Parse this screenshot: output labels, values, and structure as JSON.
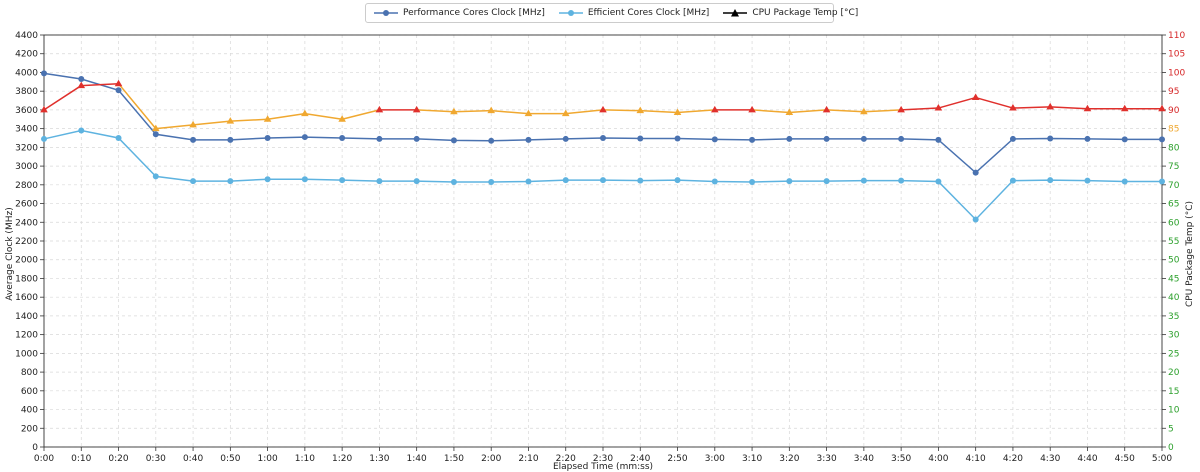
{
  "chart_data": {
    "type": "line",
    "xlabel": "Elapsed Time (mm:ss)",
    "ylabel_left": "Average Clock (MHz)",
    "ylabel_right": "CPU Package Temp (°C)",
    "x": [
      "0:00",
      "0:10",
      "0:20",
      "0:30",
      "0:40",
      "0:50",
      "1:00",
      "1:10",
      "1:20",
      "1:30",
      "1:40",
      "1:50",
      "2:00",
      "2:10",
      "2:20",
      "2:30",
      "2:40",
      "2:50",
      "3:00",
      "3:10",
      "3:20",
      "3:30",
      "3:40",
      "3:50",
      "4:00",
      "4:10",
      "4:20",
      "4:30",
      "4:40",
      "4:50",
      "5:00"
    ],
    "ylim_left": [
      0,
      4400
    ],
    "yticks_left": [
      0,
      200,
      400,
      600,
      800,
      1000,
      1200,
      1400,
      1600,
      1800,
      2000,
      2200,
      2400,
      2600,
      2800,
      3000,
      3200,
      3400,
      3600,
      3800,
      4000,
      4200,
      4400
    ],
    "ylim_right": [
      0,
      110
    ],
    "yticks_right": [
      0,
      5,
      10,
      15,
      20,
      25,
      30,
      35,
      40,
      45,
      50,
      55,
      60,
      65,
      70,
      75,
      80,
      85,
      90,
      95,
      100,
      105,
      110
    ],
    "grid": true,
    "legend_position": "top-center",
    "series": [
      {
        "name": "Performance Cores Clock [MHz]",
        "axis": "left",
        "marker": "circle",
        "values": [
          3990,
          3930,
          3810,
          3340,
          3280,
          3280,
          3300,
          3310,
          3300,
          3290,
          3290,
          3275,
          3270,
          3280,
          3290,
          3300,
          3295,
          3295,
          3285,
          3280,
          3290,
          3290,
          3290,
          3290,
          3280,
          2930,
          3290,
          3295,
          3290,
          3285,
          3285
        ]
      },
      {
        "name": "Efficient Cores Clock [MHz]",
        "axis": "left",
        "marker": "circle",
        "values": [
          3290,
          3380,
          3300,
          2890,
          2840,
          2840,
          2860,
          2860,
          2850,
          2840,
          2840,
          2830,
          2830,
          2835,
          2850,
          2850,
          2845,
          2850,
          2835,
          2830,
          2840,
          2840,
          2845,
          2845,
          2835,
          2430,
          2845,
          2850,
          2845,
          2835,
          2835
        ]
      },
      {
        "name": "CPU Package Temp [°C]",
        "axis": "right",
        "marker": "triangle",
        "values": [
          90,
          96.5,
          97,
          85,
          86,
          87,
          87.5,
          89,
          87.5,
          90,
          90,
          89.5,
          89.8,
          89,
          89,
          90,
          89.8,
          89.3,
          90,
          90,
          89.3,
          90,
          89.5,
          90,
          90.5,
          93.3,
          90.5,
          90.8,
          90.3,
          90.3,
          90.3
        ]
      }
    ],
    "colors": {
      "performance": "#4a72b0",
      "efficient": "#5eb3e0",
      "temp_warm": "#f0a830",
      "temp_hot": "#e0302c",
      "tick_warm": "#f0a830",
      "tick_hot": "#d62728",
      "tick_normal": "#2ca02c"
    }
  },
  "legend": {
    "performance_label": "Performance Cores Clock [MHz]",
    "efficient_label": "Efficient Cores Clock [MHz]",
    "temp_label": "CPU Package Temp [°C]"
  }
}
